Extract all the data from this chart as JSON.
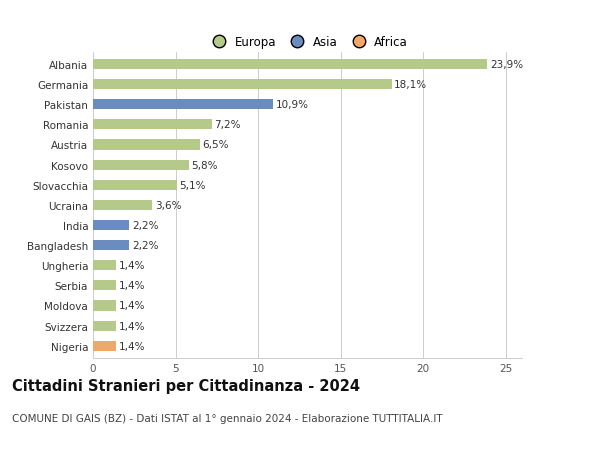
{
  "categories": [
    "Albania",
    "Germania",
    "Pakistan",
    "Romania",
    "Austria",
    "Kosovo",
    "Slovacchia",
    "Ucraina",
    "India",
    "Bangladesh",
    "Ungheria",
    "Serbia",
    "Moldova",
    "Svizzera",
    "Nigeria"
  ],
  "values": [
    23.9,
    18.1,
    10.9,
    7.2,
    6.5,
    5.8,
    5.1,
    3.6,
    2.2,
    2.2,
    1.4,
    1.4,
    1.4,
    1.4,
    1.4
  ],
  "labels": [
    "23,9%",
    "18,1%",
    "10,9%",
    "7,2%",
    "6,5%",
    "5,8%",
    "5,1%",
    "3,6%",
    "2,2%",
    "2,2%",
    "1,4%",
    "1,4%",
    "1,4%",
    "1,4%",
    "1,4%"
  ],
  "continents": [
    "Europa",
    "Europa",
    "Asia",
    "Europa",
    "Europa",
    "Europa",
    "Europa",
    "Europa",
    "Asia",
    "Asia",
    "Europa",
    "Europa",
    "Europa",
    "Europa",
    "Africa"
  ],
  "colors": {
    "Europa": "#b5c98a",
    "Asia": "#6b8cbf",
    "Africa": "#f0a868"
  },
  "legend_labels": [
    "Europa",
    "Asia",
    "Africa"
  ],
  "title": "Cittadini Stranieri per Cittadinanza - 2024",
  "subtitle": "COMUNE DI GAIS (BZ) - Dati ISTAT al 1° gennaio 2024 - Elaborazione TUTTITALIA.IT",
  "xlim": [
    0,
    26
  ],
  "xticks": [
    0,
    5,
    10,
    15,
    20,
    25
  ],
  "background_color": "#ffffff",
  "grid_color": "#cccccc",
  "bar_height": 0.5,
  "title_fontsize": 10.5,
  "subtitle_fontsize": 7.5,
  "label_fontsize": 7.5,
  "tick_fontsize": 7.5,
  "legend_fontsize": 8.5
}
